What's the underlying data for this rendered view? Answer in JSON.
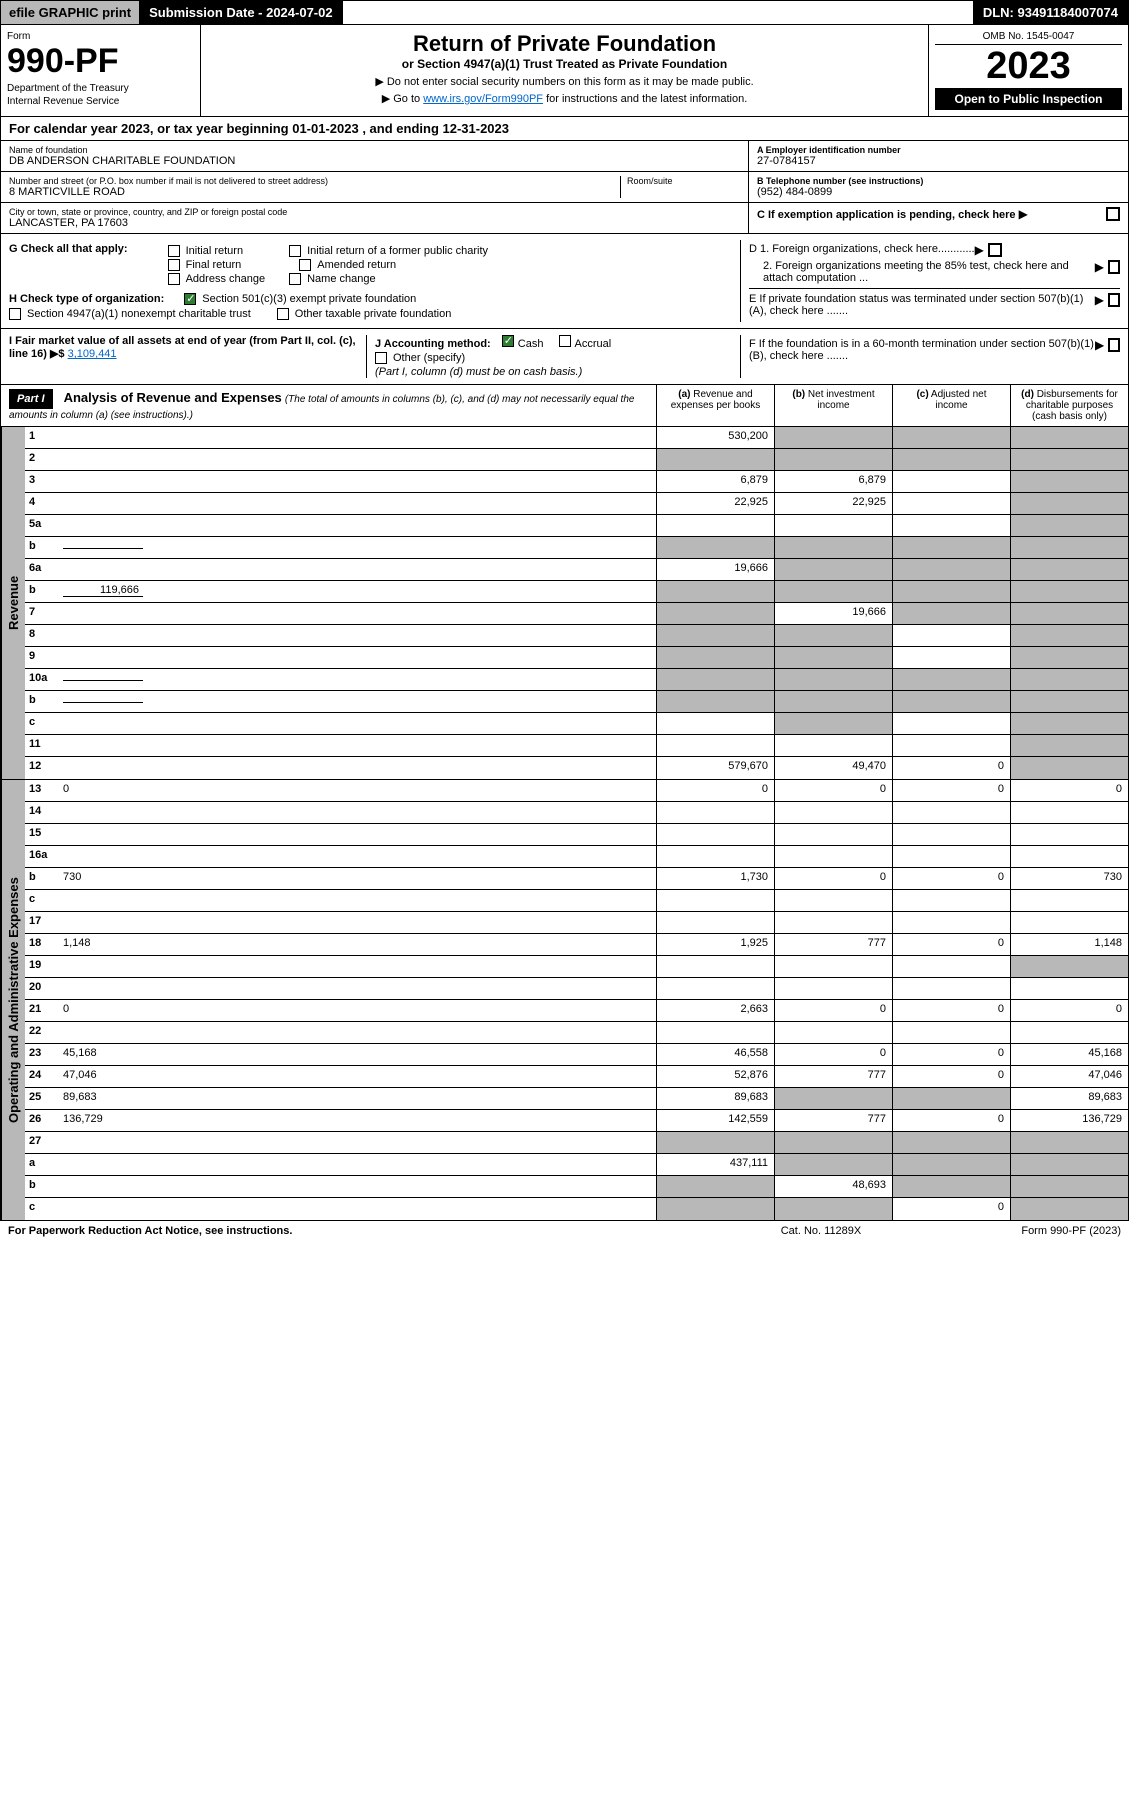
{
  "topbar": {
    "efile": "efile GRAPHIC print",
    "submission": "Submission Date - 2024-07-02",
    "dln": "DLN: 93491184007074"
  },
  "header": {
    "form_label": "Form",
    "form_num": "990-PF",
    "dept1": "Department of the Treasury",
    "dept2": "Internal Revenue Service",
    "title": "Return of Private Foundation",
    "subtitle": "or Section 4947(a)(1) Trust Treated as Private Foundation",
    "instr1": "▶ Do not enter social security numbers on this form as it may be made public.",
    "instr2_pre": "▶ Go to ",
    "instr2_link": "www.irs.gov/Form990PF",
    "instr2_post": " for instructions and the latest information.",
    "omb": "OMB No. 1545-0047",
    "year": "2023",
    "open_public": "Open to Public Inspection"
  },
  "cal_year": "For calendar year 2023, or tax year beginning 01-01-2023            , and ending 12-31-2023",
  "info": {
    "name_label": "Name of foundation",
    "name": "DB ANDERSON CHARITABLE FOUNDATION",
    "addr_label": "Number and street (or P.O. box number if mail is not delivered to street address)",
    "addr": "8 MARTICVILLE ROAD",
    "room_label": "Room/suite",
    "city_label": "City or town, state or province, country, and ZIP or foreign postal code",
    "city": "LANCASTER, PA  17603",
    "ein_label": "A Employer identification number",
    "ein": "27-0784157",
    "phone_label": "B Telephone number (see instructions)",
    "phone": "(952) 484-0899",
    "c_label": "C If exemption application is pending, check here",
    "d1": "D 1. Foreign organizations, check here............",
    "d2": "2. Foreign organizations meeting the 85% test, check here and attach computation ...",
    "e": "E  If private foundation status was terminated under section 507(b)(1)(A), check here .......",
    "f": "F  If the foundation is in a 60-month termination under section 507(b)(1)(B), check here .......",
    "g_label": "G Check all that apply:",
    "g_opts": [
      "Initial return",
      "Final return",
      "Address change",
      "Initial return of a former public charity",
      "Amended return",
      "Name change"
    ],
    "h_label": "H Check type of organization:",
    "h_501c3": "Section 501(c)(3) exempt private foundation",
    "h_4947": "Section 4947(a)(1) nonexempt charitable trust",
    "h_other": "Other taxable private foundation",
    "i_label": "I Fair market value of all assets at end of year (from Part II, col. (c), line 16) ▶$",
    "i_val": "3,109,441",
    "j_label": "J Accounting method:",
    "j_cash": "Cash",
    "j_accrual": "Accrual",
    "j_other": "Other (specify)",
    "j_note": "(Part I, column (d) must be on cash basis.)"
  },
  "part1": {
    "tag": "Part I",
    "title": "Analysis of Revenue and Expenses",
    "desc": "(The total of amounts in columns (b), (c), and (d) may not necessarily equal the amounts in column (a) (see instructions).)",
    "cols": [
      {
        "lbl": "(a)",
        "txt": "Revenue and expenses per books"
      },
      {
        "lbl": "(b)",
        "txt": "Net investment income"
      },
      {
        "lbl": "(c)",
        "txt": "Adjusted net income"
      },
      {
        "lbl": "(d)",
        "txt": "Disbursements for charitable purposes (cash basis only)"
      }
    ]
  },
  "revenue_label": "Revenue",
  "expense_label": "Operating and Administrative Expenses",
  "rows": [
    {
      "n": "1",
      "d": "",
      "a": "530,200",
      "b": "",
      "c": "",
      "sb": true,
      "sc": true,
      "sd": true
    },
    {
      "n": "2",
      "d": "",
      "a": "",
      "b": "",
      "c": "",
      "sa": true,
      "sb": true,
      "sc": true,
      "sd": true
    },
    {
      "n": "3",
      "d": "",
      "a": "6,879",
      "b": "6,879",
      "c": "",
      "sd": true
    },
    {
      "n": "4",
      "d": "",
      "a": "22,925",
      "b": "22,925",
      "c": "",
      "sd": true
    },
    {
      "n": "5a",
      "d": "",
      "a": "",
      "b": "",
      "c": "",
      "sd": true
    },
    {
      "n": "b",
      "d": "",
      "a": "",
      "b": "",
      "c": "",
      "sa": true,
      "sb": true,
      "sc": true,
      "sd": true,
      "inline": ""
    },
    {
      "n": "6a",
      "d": "",
      "a": "19,666",
      "b": "",
      "c": "",
      "sb": true,
      "sc": true,
      "sd": true
    },
    {
      "n": "b",
      "d": "",
      "a": "",
      "b": "",
      "c": "",
      "sa": true,
      "sb": true,
      "sc": true,
      "sd": true,
      "inline": "119,666"
    },
    {
      "n": "7",
      "d": "",
      "a": "",
      "b": "19,666",
      "c": "",
      "sa": true,
      "sc": true,
      "sd": true
    },
    {
      "n": "8",
      "d": "",
      "a": "",
      "b": "",
      "c": "",
      "sa": true,
      "sb": true,
      "sd": true
    },
    {
      "n": "9",
      "d": "",
      "a": "",
      "b": "",
      "c": "",
      "sa": true,
      "sb": true,
      "sd": true
    },
    {
      "n": "10a",
      "d": "",
      "a": "",
      "b": "",
      "c": "",
      "sa": true,
      "sb": true,
      "sc": true,
      "sd": true,
      "inline": ""
    },
    {
      "n": "b",
      "d": "",
      "a": "",
      "b": "",
      "c": "",
      "sa": true,
      "sb": true,
      "sc": true,
      "sd": true,
      "inline": ""
    },
    {
      "n": "c",
      "d": "",
      "a": "",
      "b": "",
      "c": "",
      "sb": true,
      "sd": true
    },
    {
      "n": "11",
      "d": "",
      "a": "",
      "b": "",
      "c": "",
      "sd": true
    },
    {
      "n": "12",
      "d": "",
      "a": "579,670",
      "b": "49,470",
      "c": "0",
      "sd": true
    }
  ],
  "exp_rows": [
    {
      "n": "13",
      "d": "0",
      "a": "0",
      "b": "0",
      "c": "0"
    },
    {
      "n": "14",
      "d": "",
      "a": "",
      "b": "",
      "c": ""
    },
    {
      "n": "15",
      "d": "",
      "a": "",
      "b": "",
      "c": ""
    },
    {
      "n": "16a",
      "d": "",
      "a": "",
      "b": "",
      "c": ""
    },
    {
      "n": "b",
      "d": "730",
      "a": "1,730",
      "b": "0",
      "c": "0"
    },
    {
      "n": "c",
      "d": "",
      "a": "",
      "b": "",
      "c": ""
    },
    {
      "n": "17",
      "d": "",
      "a": "",
      "b": "",
      "c": ""
    },
    {
      "n": "18",
      "d": "1,148",
      "a": "1,925",
      "b": "777",
      "c": "0"
    },
    {
      "n": "19",
      "d": "",
      "a": "",
      "b": "",
      "c": "",
      "sd": true
    },
    {
      "n": "20",
      "d": "",
      "a": "",
      "b": "",
      "c": ""
    },
    {
      "n": "21",
      "d": "0",
      "a": "2,663",
      "b": "0",
      "c": "0"
    },
    {
      "n": "22",
      "d": "",
      "a": "",
      "b": "",
      "c": ""
    },
    {
      "n": "23",
      "d": "45,168",
      "a": "46,558",
      "b": "0",
      "c": "0"
    },
    {
      "n": "24",
      "d": "47,046",
      "a": "52,876",
      "b": "777",
      "c": "0"
    },
    {
      "n": "25",
      "d": "89,683",
      "a": "89,683",
      "b": "",
      "c": "",
      "sb": true,
      "sc": true
    },
    {
      "n": "26",
      "d": "136,729",
      "a": "142,559",
      "b": "777",
      "c": "0"
    },
    {
      "n": "27",
      "d": "",
      "a": "",
      "b": "",
      "c": "",
      "sa": true,
      "sb": true,
      "sc": true,
      "sd": true
    },
    {
      "n": "a",
      "d": "",
      "a": "437,111",
      "b": "",
      "c": "",
      "sb": true,
      "sc": true,
      "sd": true
    },
    {
      "n": "b",
      "d": "",
      "a": "",
      "b": "48,693",
      "c": "",
      "sa": true,
      "sc": true,
      "sd": true
    },
    {
      "n": "c",
      "d": "",
      "a": "",
      "b": "",
      "c": "0",
      "sa": true,
      "sb": true,
      "sd": true
    }
  ],
  "footer": {
    "left": "For Paperwork Reduction Act Notice, see instructions.",
    "mid": "Cat. No. 11289X",
    "right": "Form 990-PF (2023)"
  }
}
